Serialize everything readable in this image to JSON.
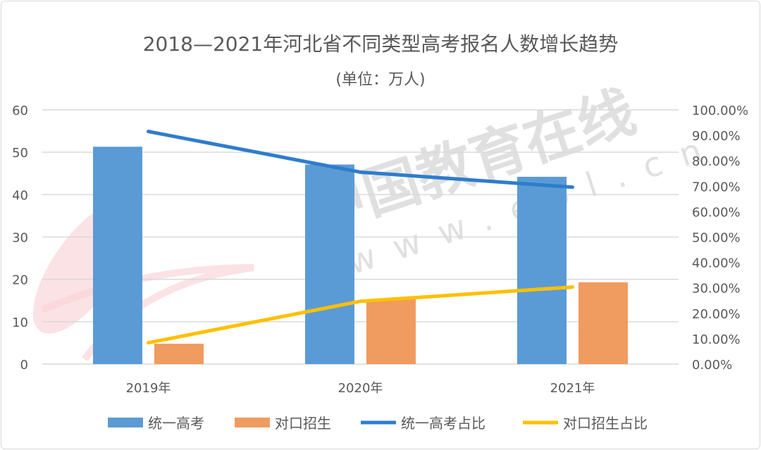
{
  "chart_data": {
    "type": "bar",
    "title": "2018—2021年河北省不同类型高考报名人数增长趋势",
    "subtitle": "(单位：万人)",
    "categories": [
      "2019年",
      "2020年",
      "2021年"
    ],
    "series": [
      {
        "name": "统一高考",
        "kind": "bar",
        "axis": "left",
        "color": "#5b9bd5",
        "values": [
          51.3,
          47.1,
          44.2
        ]
      },
      {
        "name": "对口招生",
        "kind": "bar",
        "axis": "left",
        "color": "#f09b5f",
        "values": [
          4.8,
          15.3,
          19.3
        ]
      },
      {
        "name": "统一高考占比",
        "kind": "line",
        "axis": "right",
        "color": "#2e7dcc",
        "values": [
          91.5,
          75.5,
          69.6
        ]
      },
      {
        "name": "对口招生占比",
        "kind": "line",
        "axis": "right",
        "color": "#ffc000",
        "values": [
          8.4,
          24.7,
          30.3
        ]
      }
    ],
    "ylim": [
      0,
      60
    ],
    "yticks": [
      "0",
      "10",
      "20",
      "30",
      "40",
      "50",
      "60"
    ],
    "y2lim": [
      0,
      100
    ],
    "y2ticks": [
      "0.00%",
      "10.00%",
      "20.00%",
      "30.00%",
      "40.00%",
      "50.00%",
      "60.00%",
      "70.00%",
      "80.00%",
      "90.00%",
      "100.00%"
    ],
    "grid": true,
    "legend": "bottom",
    "watermark": "中国教育在线 www.eol.cn"
  }
}
